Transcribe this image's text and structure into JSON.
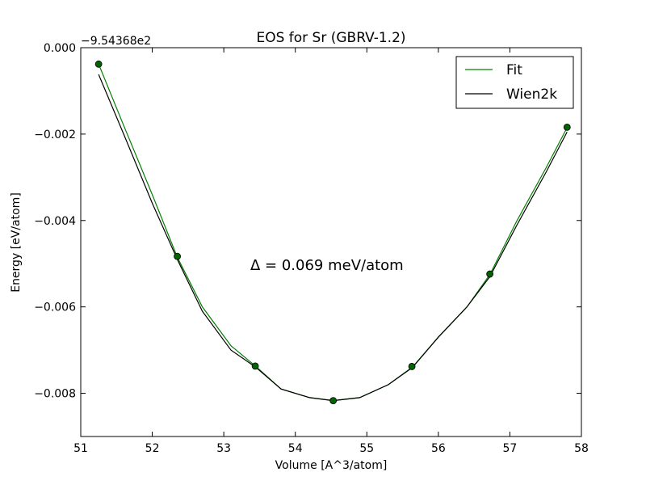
{
  "chart_data": {
    "type": "line",
    "title": "EOS for Sr (GBRV-1.2)",
    "xlabel": "Volume [A^3/atom]",
    "ylabel": "Energy [eV/atom]",
    "y_offset_label": "−9.54368e2",
    "annotation": "Δ = 0.069 meV/atom",
    "xlim": [
      51,
      58
    ],
    "ylim": [
      -0.009,
      0.0
    ],
    "x_ticks": [
      51,
      52,
      53,
      54,
      55,
      56,
      57,
      58
    ],
    "x_tick_labels": [
      "51",
      "52",
      "53",
      "54",
      "55",
      "56",
      "57",
      "58"
    ],
    "y_ticks": [
      0.0,
      -0.002,
      -0.004,
      -0.006,
      -0.008
    ],
    "y_tick_labels": [
      "0.000",
      "−0.002",
      "−0.004",
      "−0.006",
      "−0.008"
    ],
    "grid": false,
    "legend_position": "top-right",
    "series": [
      {
        "name": "Fit",
        "kind": "curve",
        "color": "#008000",
        "x": [
          51.25,
          51.6,
          52.0,
          52.35,
          52.7,
          53.1,
          53.45,
          53.8,
          54.2,
          54.53,
          54.9,
          55.3,
          55.64,
          56.0,
          56.4,
          56.72,
          57.1,
          57.5,
          57.8
        ],
        "y": [
          -0.00038,
          -0.0018,
          -0.0034,
          -0.00485,
          -0.006,
          -0.0069,
          -0.00738,
          -0.0079,
          -0.0081,
          -0.00817,
          -0.0081,
          -0.0078,
          -0.00739,
          -0.0067,
          -0.006,
          -0.00525,
          -0.004,
          -0.0028,
          -0.00185
        ]
      },
      {
        "name": "Wien2k",
        "kind": "curve",
        "color": "#000000",
        "x": [
          51.25,
          51.6,
          52.0,
          52.35,
          52.7,
          53.1,
          53.45,
          53.8,
          54.2,
          54.53,
          54.9,
          55.3,
          55.64,
          56.0,
          56.4,
          56.72,
          57.1,
          57.5,
          57.8
        ],
        "y": [
          -0.00062,
          -0.002,
          -0.0036,
          -0.0049,
          -0.0061,
          -0.007,
          -0.0074,
          -0.0079,
          -0.0081,
          -0.00817,
          -0.0081,
          -0.0078,
          -0.0074,
          -0.0067,
          -0.006,
          -0.0053,
          -0.0041,
          -0.0029,
          -0.00195
        ]
      },
      {
        "kind": "points",
        "color": "#006400",
        "x": [
          51.25,
          52.35,
          53.44,
          54.53,
          55.63,
          56.72,
          57.8
        ],
        "y": [
          -0.00038,
          -0.00483,
          -0.00737,
          -0.00817,
          -0.00738,
          -0.00524,
          -0.00184
        ]
      }
    ]
  }
}
